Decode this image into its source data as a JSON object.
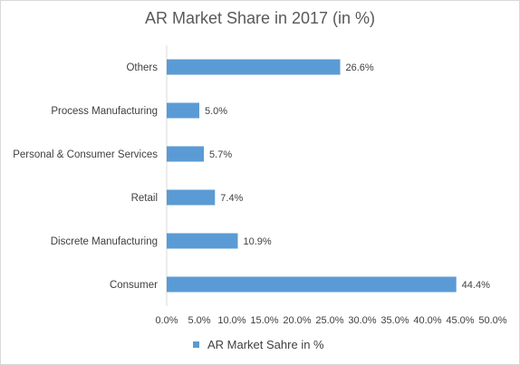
{
  "chart_data": {
    "type": "bar",
    "orientation": "horizontal",
    "title": "AR Market Share in 2017 (in %)",
    "categories": [
      "Others",
      "Process Manufacturing",
      "Personal & Consumer Services",
      "Retail",
      "Discrete Manufacturing",
      "Consumer"
    ],
    "series": [
      {
        "name": "AR Market Sahre in %",
        "values": [
          26.6,
          5.0,
          5.7,
          7.4,
          10.9,
          44.4
        ],
        "labels": [
          "26.6%",
          "5.0%",
          "5.7%",
          "7.4%",
          "10.9%",
          "44.4%"
        ],
        "color": "#5b9bd5"
      }
    ],
    "xlim": [
      0,
      50
    ],
    "xticks": [
      "0.0%",
      "5.0%",
      "10.0%",
      "15.0%",
      "20.0%",
      "25.0%",
      "30.0%",
      "35.0%",
      "40.0%",
      "45.0%",
      "50.0%"
    ],
    "xtick_values": [
      0,
      5,
      10,
      15,
      20,
      25,
      30,
      35,
      40,
      45,
      50
    ],
    "grid": false,
    "legend": "bottom"
  }
}
